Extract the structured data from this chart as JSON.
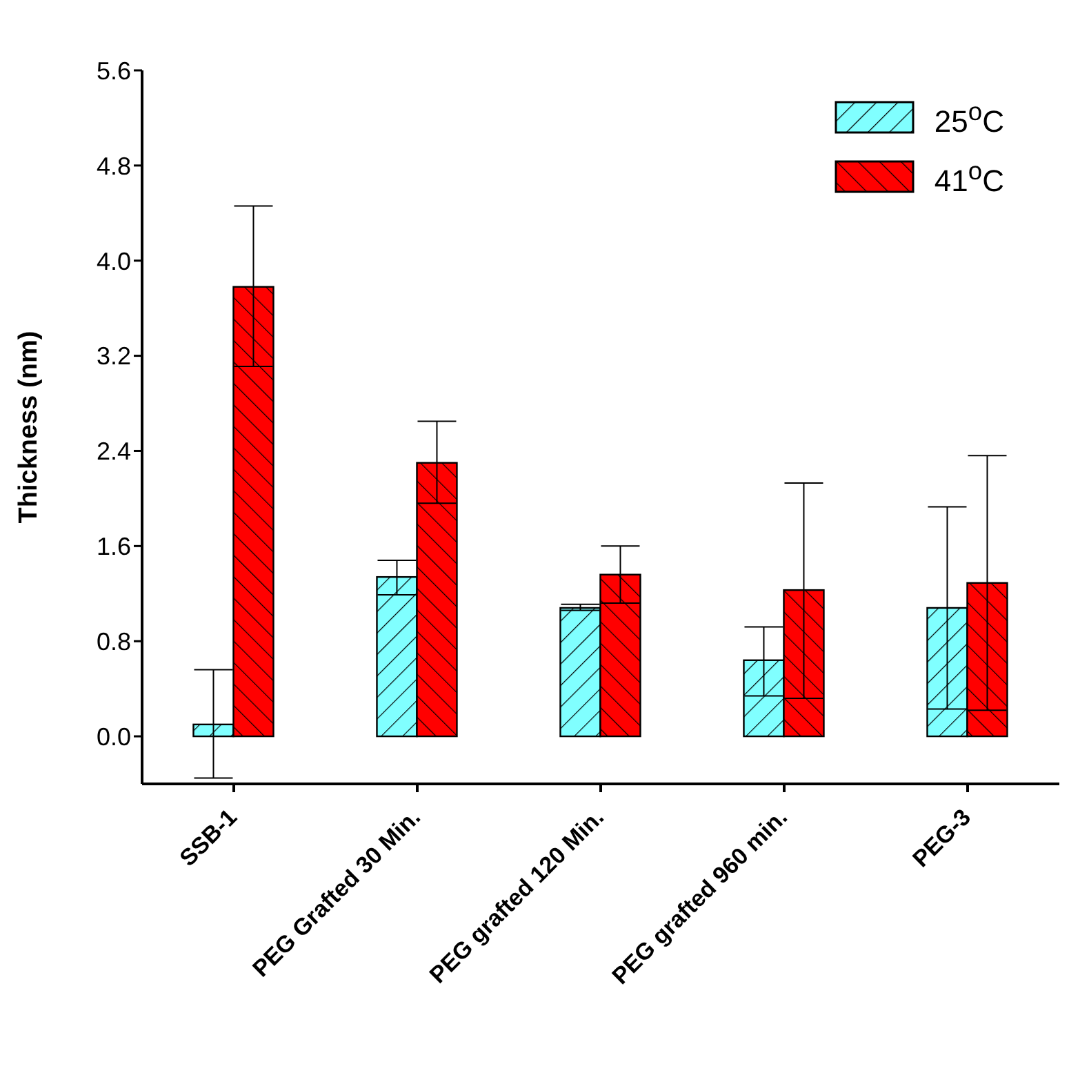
{
  "chart_data": {
    "type": "bar",
    "ylabel": "Thickness (nm)",
    "categories": [
      "SSB-1",
      "PEG Grafted 30 Min.",
      "PEG grafted 120 Min.",
      "PEG grafted 960 min.",
      "PEG-3"
    ],
    "series": [
      {
        "name": "25$^{o}$C",
        "color": "#80ffff",
        "values": [
          0.1,
          1.34,
          1.08,
          0.64,
          1.08
        ],
        "errors": [
          [
            -0.35,
            0.56
          ],
          [
            1.19,
            1.48
          ],
          [
            1.06,
            1.11
          ],
          [
            0.34,
            0.92
          ],
          [
            0.23,
            1.93
          ]
        ]
      },
      {
        "name": "41$^{o}$C",
        "color": "#ff0000",
        "values": [
          3.78,
          2.3,
          1.36,
          1.23,
          1.29
        ],
        "errors": [
          [
            3.11,
            4.46
          ],
          [
            1.96,
            2.65
          ],
          [
            1.12,
            1.6
          ],
          [
            0.32,
            2.13
          ],
          [
            0.22,
            2.36
          ]
        ]
      }
    ],
    "ylim": [
      -0.4,
      5.6
    ],
    "yticks": [
      {
        "value": 0,
        "label": "0.0"
      },
      0.8,
      1.6,
      2.4,
      3.2,
      {
        "value": 4,
        "label": "4.0"
      },
      4.8,
      5.6
    ],
    "grid": false,
    "legend": "top right"
  }
}
